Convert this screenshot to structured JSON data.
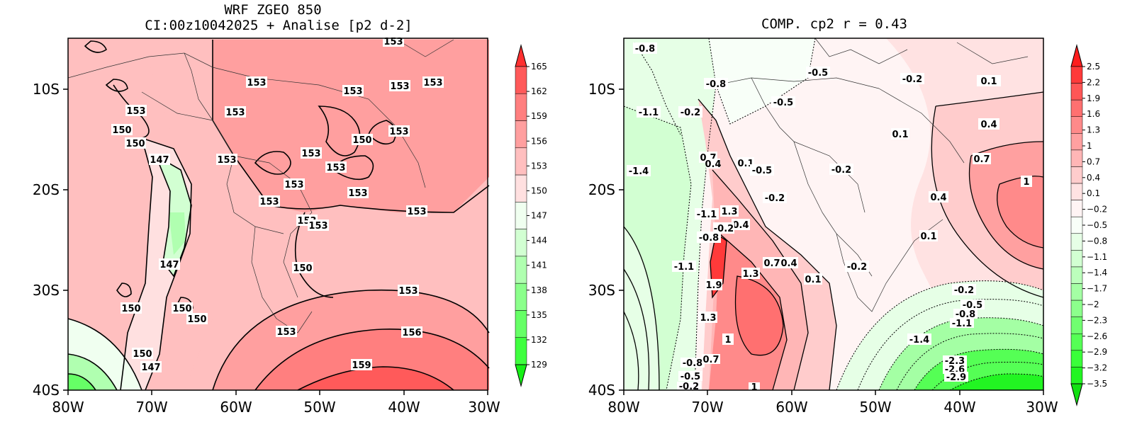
{
  "panels": [
    {
      "id": "left",
      "title_line1": "WRF ZGEO 850",
      "title_line2": "CI:00z10042025 + Analise  [p2 d-2]",
      "x_ticks": [
        "80W",
        "70W",
        "60W",
        "50W",
        "40W",
        "30W"
      ],
      "y_ticks": [
        "10S",
        "20S",
        "30S",
        "40S"
      ],
      "colorbar": {
        "ticks": [
          "165",
          "162",
          "159",
          "156",
          "153",
          "150",
          "147",
          "144",
          "141",
          "138",
          "135",
          "132",
          "129"
        ],
        "colors": [
          "#ff3030",
          "#ff5a5a",
          "#ff7f7f",
          "#ff9f9f",
          "#ffbfbf",
          "#ffe0e0",
          "#f0fff0",
          "#d2ffd2",
          "#b0ffb0",
          "#8bff8b",
          "#66ff66",
          "#3fff3f",
          "#16f016"
        ]
      },
      "contour_labels": [
        "153",
        "153",
        "153",
        "153",
        "153",
        "153",
        "153",
        "153",
        "153",
        "150",
        "150",
        "150",
        "147",
        "153",
        "153",
        "153",
        "153",
        "153",
        "153",
        "153",
        "153",
        "150",
        "150",
        "147",
        "150",
        "150",
        "150",
        "153",
        "153",
        "156",
        "150",
        "147",
        "159"
      ]
    },
    {
      "id": "right",
      "title_line1": "COMP. cp2  r =  0.43",
      "x_ticks": [
        "80W",
        "70W",
        "60W",
        "50W",
        "40W",
        "30W"
      ],
      "y_ticks": [
        "10S",
        "20S",
        "30S",
        "40S"
      ],
      "colorbar": {
        "ticks": [
          "2.5",
          "2.2",
          "1.9",
          "1.6",
          "1.3",
          "1",
          "0.7",
          "0.4",
          "0.1",
          "−0.2",
          "−0.5",
          "−0.8",
          "−1.1",
          "−1.4",
          "−1.7",
          "−2",
          "−2.3",
          "−2.6",
          "−2.9",
          "−3.2",
          "−3.5"
        ],
        "colors": [
          "#ff1e1e",
          "#ff3a3a",
          "#ff5656",
          "#ff7070",
          "#ff8a8a",
          "#ffa0a0",
          "#ffb6b6",
          "#ffcccc",
          "#ffe2e2",
          "#fff4f4",
          "#f8fff8",
          "#e6ffe6",
          "#d2ffd2",
          "#bcffbc",
          "#a4ffa4",
          "#8cff8c",
          "#70ff70",
          "#55ff55",
          "#3aff3a",
          "#22f522",
          "#12e012"
        ]
      },
      "contour_labels": [
        "-0.8",
        "-0.5",
        "-0.8",
        "-0.5",
        "-0.2",
        "0.1",
        "-0.2",
        "-1.1",
        "0.1",
        "0.4",
        "0.7",
        "0.7",
        "0.4",
        "-1.4",
        "0.1",
        "-0.5",
        "-0.2",
        "0.4",
        "1",
        "-0.2",
        "-1.1",
        "1.3",
        "0.4",
        "0.1",
        "-0.2",
        "-0.8",
        "-1.1",
        "0.7",
        "0.4",
        "1.3",
        "-0.2",
        "1.9",
        "0.1",
        "-0.2",
        "-0.5",
        "-0.8",
        "-1.1",
        "1.3",
        "-1.4",
        "1",
        "-2.3",
        "-2.6",
        "-2.9",
        "-0.8",
        "0.7",
        "-0.5",
        "-0.2",
        "1"
      ]
    }
  ]
}
